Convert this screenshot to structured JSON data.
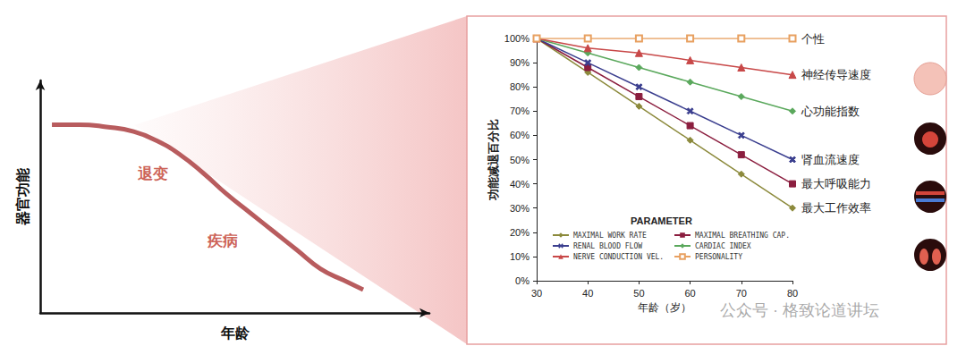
{
  "chart_data": [
    {
      "type": "line",
      "x": [
        3,
        10,
        17,
        24,
        30,
        36,
        42,
        48,
        54,
        60,
        66,
        72,
        78,
        83
      ],
      "values": [
        81,
        81,
        80,
        78,
        74,
        68,
        60,
        51,
        43,
        35,
        27,
        19,
        14,
        10
      ],
      "color": "#b85c5e",
      "xlim": [
        0,
        100
      ],
      "ylim": [
        0,
        100
      ],
      "tick_labels": false,
      "x_label": "年龄",
      "y_label": "器官功能",
      "annotations": [
        {
          "text": "退变",
          "x": 29,
          "y": 60
        },
        {
          "text": "疾病",
          "x": 47,
          "y": 31
        }
      ]
    },
    {
      "type": "line",
      "x": [
        30,
        40,
        50,
        60,
        70,
        80
      ],
      "xlim": [
        30,
        80
      ],
      "xticks": [
        30,
        40,
        50,
        60,
        70,
        80
      ],
      "ylim": [
        0,
        100
      ],
      "yticks": [
        {
          "value": 0,
          "label": "0%"
        },
        {
          "value": 10,
          "label": "10%"
        },
        {
          "value": 20,
          "label": "20%"
        },
        {
          "value": 30,
          "label": "30%"
        },
        {
          "value": 40,
          "label": "40%"
        },
        {
          "value": 50,
          "label": "50%"
        },
        {
          "value": 60,
          "label": "60%"
        },
        {
          "value": 70,
          "label": "70%"
        },
        {
          "value": 80,
          "label": "80%"
        },
        {
          "value": 90,
          "label": "90%"
        },
        {
          "value": 100,
          "label": "100%"
        }
      ],
      "x_label": "年龄（岁）",
      "y_label": "功能减退百分比",
      "legend_title": "PARAMETER",
      "grid": false,
      "series": [
        {
          "name": "MAXIMAL WORK RATE",
          "label": "最大工作效率",
          "color": "#8c8a3c",
          "marker": "diamond",
          "values": [
            100,
            86,
            72,
            58,
            44,
            30
          ]
        },
        {
          "name": "MAXIMAL BREATHING CAP.",
          "label": "最大呼吸能力",
          "color": "#8b1e3f",
          "marker": "square",
          "values": [
            100,
            88,
            76,
            64,
            52,
            40
          ]
        },
        {
          "name": "RENAL BLOOD FLOW",
          "label": "肾血流速度",
          "color": "#3b3f8f",
          "marker": "x",
          "values": [
            100,
            90,
            80,
            70,
            60,
            50
          ]
        },
        {
          "name": "CARDIAC INDEX",
          "label": "心功能指数",
          "color": "#5aa85c",
          "marker": "diamond",
          "values": [
            100,
            94,
            88,
            82,
            76,
            70
          ]
        },
        {
          "name": "NERVE CONDUCTION VEL.",
          "label": "神经传导速度",
          "color": "#c84848",
          "marker": "triangle",
          "values": [
            100,
            96,
            94,
            91,
            88,
            85
          ]
        },
        {
          "name": "PERSONALITY",
          "label": "个性",
          "color": "#e8a060",
          "marker": "hollow_square",
          "values": [
            100,
            100,
            100,
            100,
            100,
            100
          ]
        }
      ]
    }
  ],
  "watermark": "公众号 · 格致论道讲坛"
}
